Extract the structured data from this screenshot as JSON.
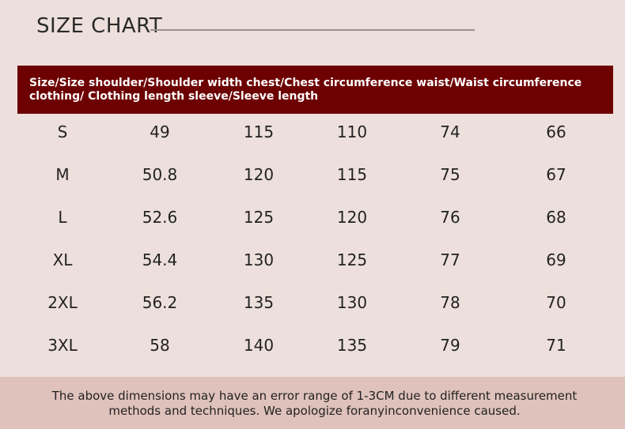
{
  "title": "SIZE CHART",
  "header": "Size/Size shoulder/Shoulder width chest/Chest circumference waist/Waist circumference clothing/ Clothing length sleeve/Sleeve length",
  "rows": [
    [
      "S",
      "49",
      "115",
      "110",
      "74",
      "66"
    ],
    [
      "M",
      "50.8",
      "120",
      "115",
      "75",
      "67"
    ],
    [
      "L",
      "52.6",
      "125",
      "120",
      "76",
      "68"
    ],
    [
      "XL",
      "54.4",
      "130",
      "125",
      "77",
      "69"
    ],
    [
      "2XL",
      "56.2",
      "135",
      "130",
      "78",
      "70"
    ],
    [
      "3XL",
      "58",
      "140",
      "135",
      "79",
      "71"
    ]
  ],
  "footer": "The above dimensions may have an error range of 1-3CM  due to different measurement methods and techniques. We apologize foranyinconvenience caused.",
  "colors": {
    "background": "#ede0dc",
    "header_band": "#6d0000",
    "footer_band": "#dfc2bb"
  }
}
